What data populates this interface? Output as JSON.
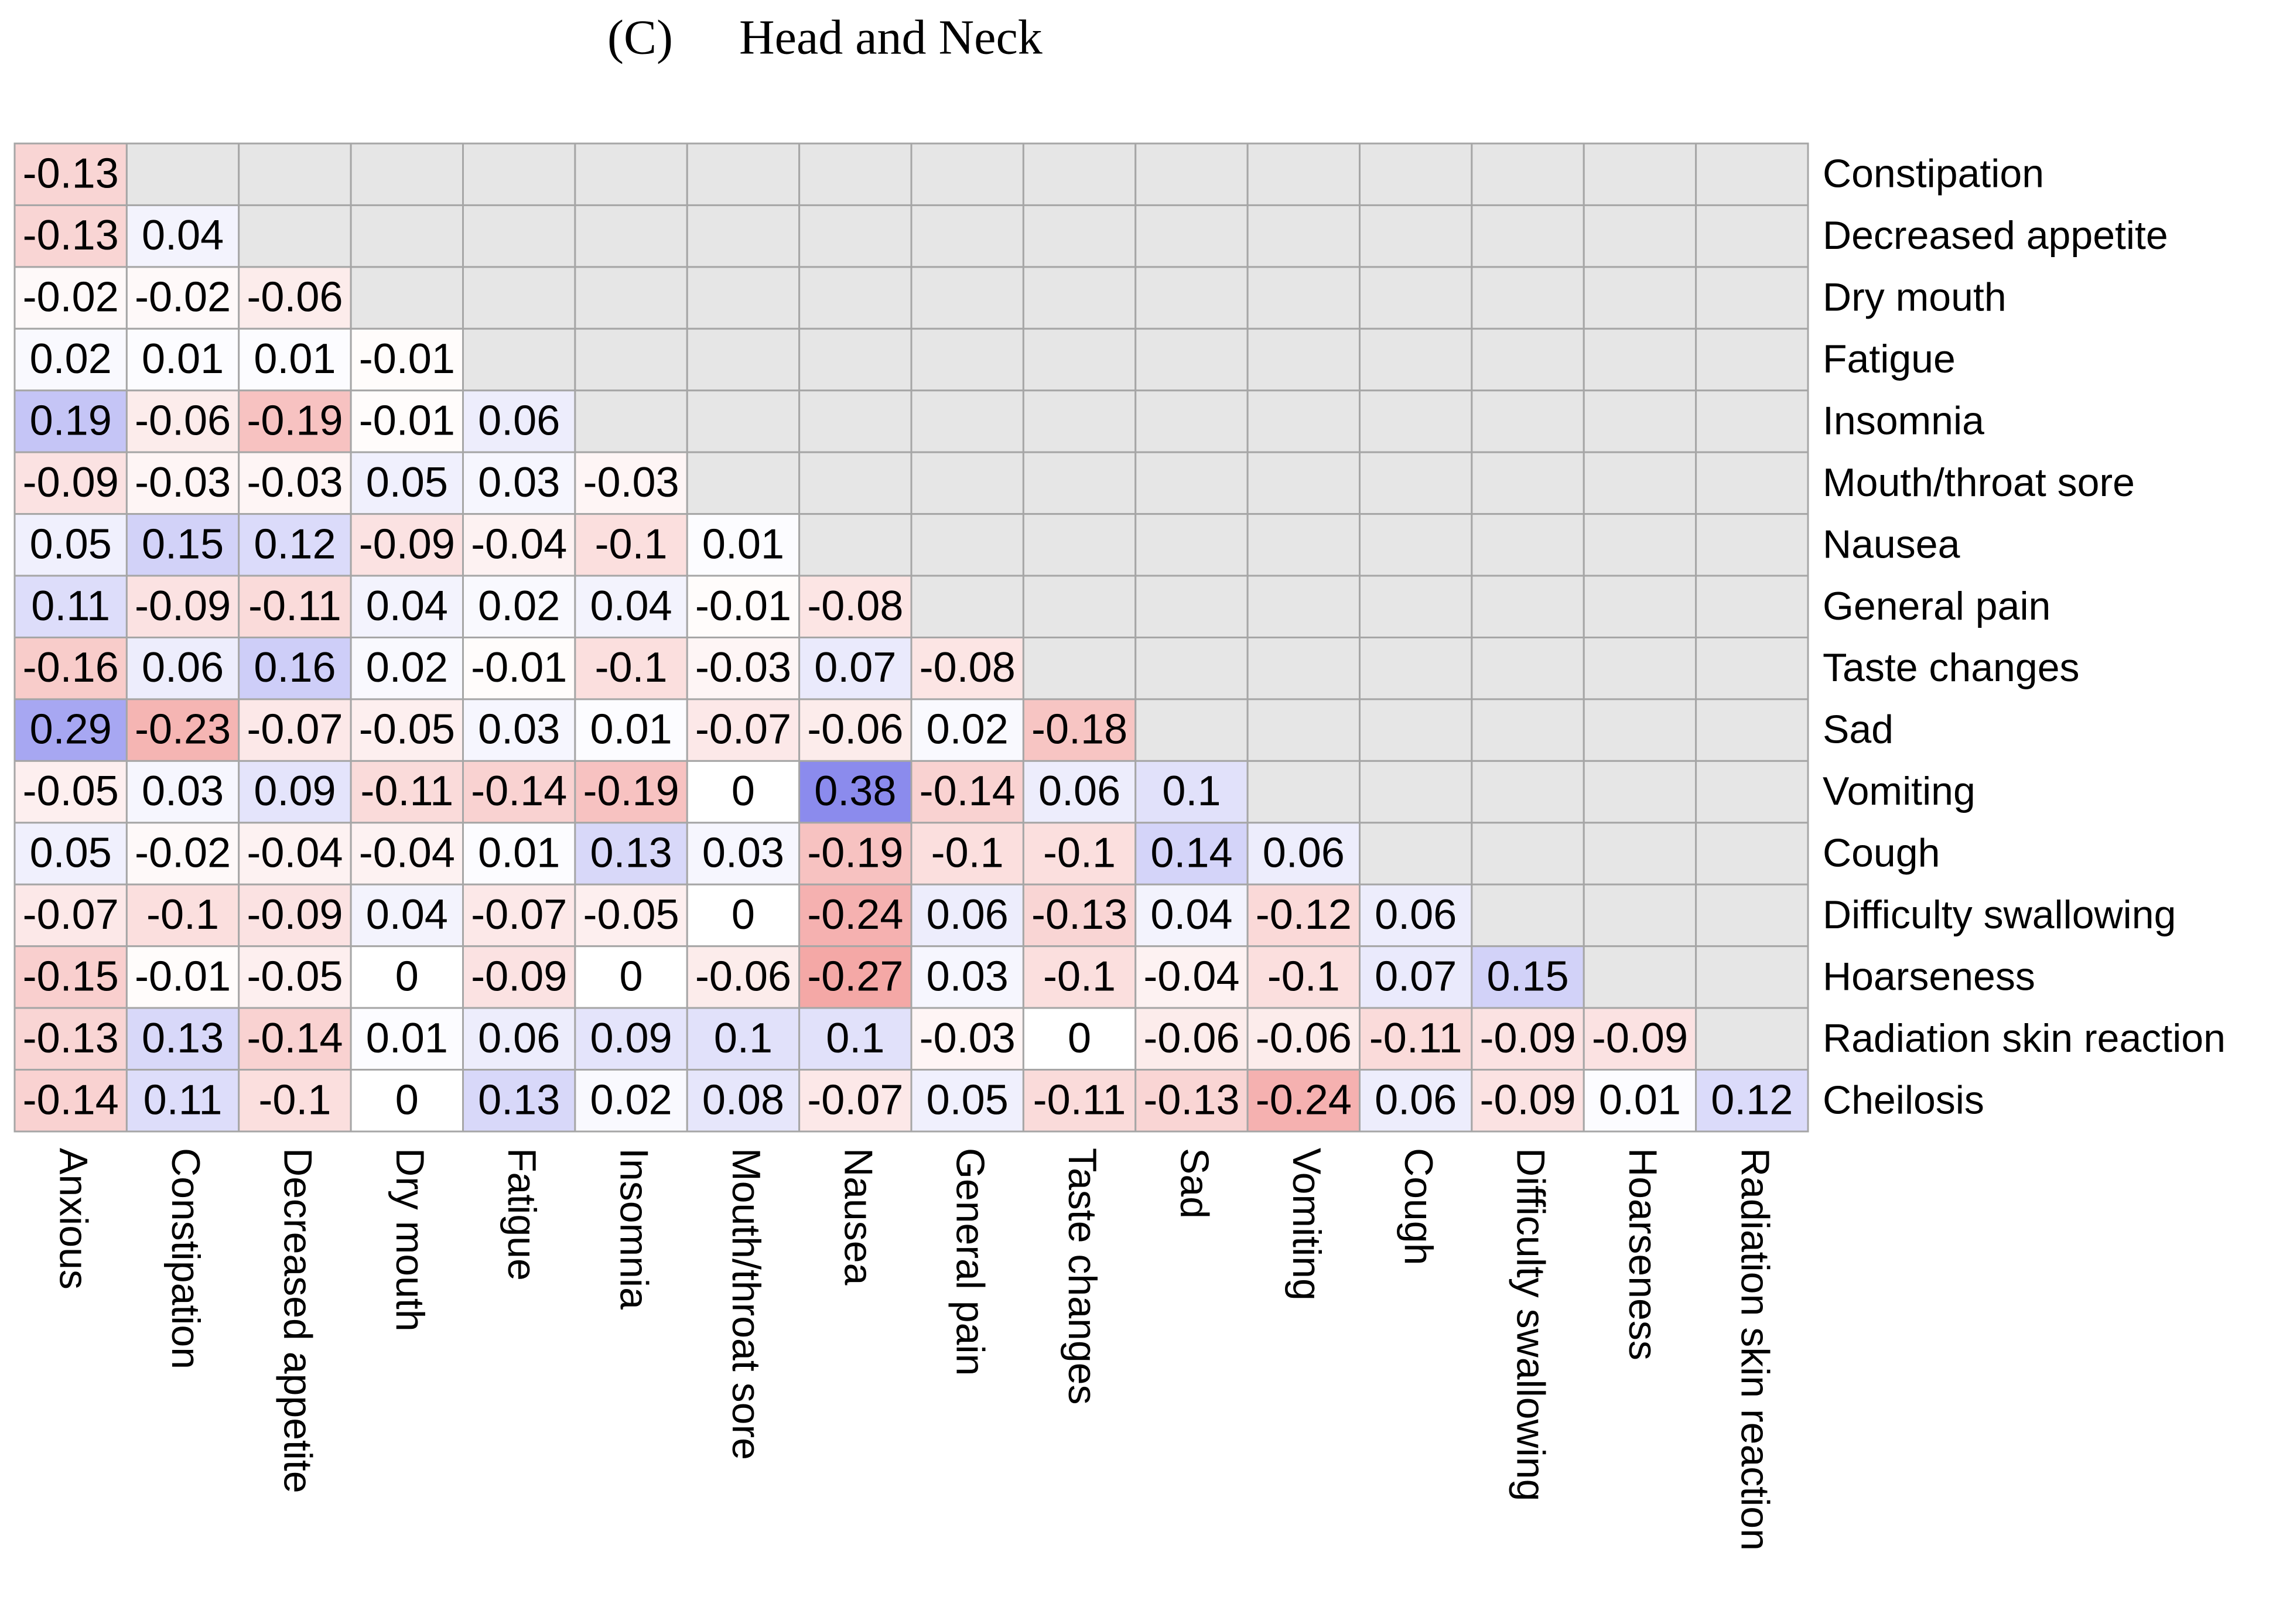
{
  "chart_data": {
    "type": "heatmap",
    "panel_label": "(C)",
    "title": "Head and Neck",
    "rows": [
      "Constipation",
      "Decreased appetite",
      "Dry mouth",
      "Fatigue",
      "Insomnia",
      "Mouth/throat sore",
      "Nausea",
      "General pain",
      "Taste changes",
      "Sad",
      "Vomiting",
      "Cough",
      "Difficulty swallowing",
      "Hoarseness",
      "Radiation skin reaction",
      "Cheilosis"
    ],
    "columns": [
      "Anxious",
      "Constipation",
      "Decreased appetite",
      "Dry mouth",
      "Fatigue",
      "Insomnia",
      "Mouth/throat sore",
      "Nausea",
      "General pain",
      "Taste changes",
      "Sad",
      "Vomiting",
      "Cough",
      "Difficulty swallowing",
      "Hoarseness",
      "Radiation skin reaction"
    ],
    "values": [
      [
        -0.13,
        null,
        null,
        null,
        null,
        null,
        null,
        null,
        null,
        null,
        null,
        null,
        null,
        null,
        null,
        null
      ],
      [
        -0.13,
        0.04,
        null,
        null,
        null,
        null,
        null,
        null,
        null,
        null,
        null,
        null,
        null,
        null,
        null,
        null
      ],
      [
        -0.02,
        -0.02,
        -0.06,
        null,
        null,
        null,
        null,
        null,
        null,
        null,
        null,
        null,
        null,
        null,
        null,
        null
      ],
      [
        0.02,
        0.01,
        0.01,
        -0.01,
        null,
        null,
        null,
        null,
        null,
        null,
        null,
        null,
        null,
        null,
        null,
        null
      ],
      [
        0.19,
        -0.06,
        -0.19,
        -0.01,
        0.06,
        null,
        null,
        null,
        null,
        null,
        null,
        null,
        null,
        null,
        null,
        null
      ],
      [
        -0.09,
        -0.03,
        -0.03,
        0.05,
        0.03,
        -0.03,
        null,
        null,
        null,
        null,
        null,
        null,
        null,
        null,
        null,
        null
      ],
      [
        0.05,
        0.15,
        0.12,
        -0.09,
        -0.04,
        -0.1,
        0.01,
        null,
        null,
        null,
        null,
        null,
        null,
        null,
        null,
        null
      ],
      [
        0.11,
        -0.09,
        -0.11,
        0.04,
        0.02,
        0.04,
        -0.01,
        -0.08,
        null,
        null,
        null,
        null,
        null,
        null,
        null,
        null
      ],
      [
        -0.16,
        0.06,
        0.16,
        0.02,
        -0.01,
        -0.1,
        -0.03,
        0.07,
        -0.08,
        null,
        null,
        null,
        null,
        null,
        null,
        null
      ],
      [
        0.29,
        -0.23,
        -0.07,
        -0.05,
        0.03,
        0.01,
        -0.07,
        -0.06,
        0.02,
        -0.18,
        null,
        null,
        null,
        null,
        null,
        null
      ],
      [
        -0.05,
        0.03,
        0.09,
        -0.11,
        -0.14,
        -0.19,
        0,
        0.38,
        -0.14,
        0.06,
        0.1,
        null,
        null,
        null,
        null,
        null
      ],
      [
        0.05,
        -0.02,
        -0.04,
        -0.04,
        0.01,
        0.13,
        0.03,
        -0.19,
        -0.1,
        -0.1,
        0.14,
        0.06,
        null,
        null,
        null,
        null
      ],
      [
        -0.07,
        -0.1,
        -0.09,
        0.04,
        -0.07,
        -0.05,
        0,
        -0.24,
        0.06,
        -0.13,
        0.04,
        -0.12,
        0.06,
        null,
        null,
        null
      ],
      [
        -0.15,
        -0.01,
        -0.05,
        0,
        -0.09,
        0,
        -0.06,
        -0.27,
        0.03,
        -0.1,
        -0.04,
        -0.1,
        0.07,
        0.15,
        null,
        null
      ],
      [
        -0.13,
        0.13,
        -0.14,
        0.01,
        0.06,
        0.09,
        0.1,
        0.1,
        -0.03,
        0,
        -0.06,
        -0.06,
        -0.11,
        -0.09,
        -0.09,
        null
      ],
      [
        -0.14,
        0.11,
        -0.1,
        0,
        0.13,
        0.02,
        0.08,
        -0.07,
        0.05,
        -0.11,
        -0.13,
        -0.24,
        0.06,
        -0.09,
        0.01,
        0.12
      ]
    ],
    "negative_color": "#e8504c",
    "positive_color": "#5a5ae6",
    "empty_color": "#e6e6e6",
    "grid_color": "#a6a6a6"
  }
}
